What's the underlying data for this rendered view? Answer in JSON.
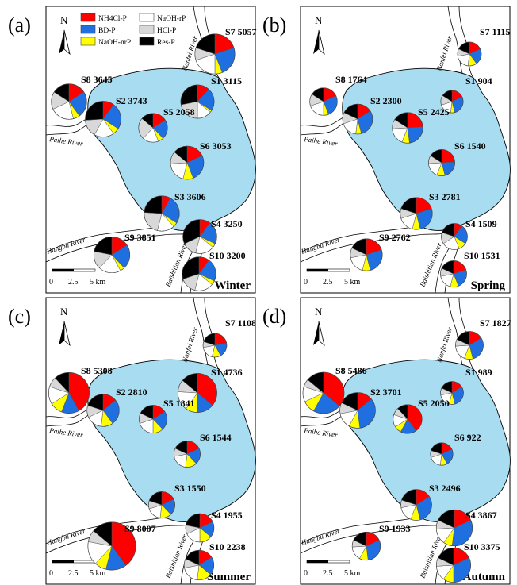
{
  "panel_labels": [
    "(a)",
    "(b)",
    "(c)",
    "(d)"
  ],
  "seasons": [
    "Winter",
    "Spring",
    "Summer",
    "Autumn"
  ],
  "north_label": "N",
  "rivers": {
    "nanfei": "Nanfei River",
    "paihe": "Paihe River",
    "hangbu": "Hangbu River",
    "baishitian": "Baishitian River"
  },
  "scale": {
    "t0": "0",
    "t1": "2.5",
    "t2": "5 km"
  },
  "legend": [
    {
      "name": "NH4Cl-P",
      "color": "#ff0000"
    },
    {
      "name": "NaOH-rP",
      "color": "#ffffff"
    },
    {
      "name": "BD-P",
      "color": "#1f6fe0"
    },
    {
      "name": "HCl-P",
      "color": "#d8d8d8"
    },
    {
      "name": "NaOH-nrP",
      "color": "#ffff00"
    },
    {
      "name": "Res-P",
      "color": "#000000"
    }
  ],
  "colors": {
    "lake": "#a8dcf0",
    "NH4Cl-P": "#ff0000",
    "BD-P": "#1f6fe0",
    "NaOH-nrP": "#ffff00",
    "NaOH-rP": "#ffffff",
    "HCl-P": "#d8d8d8",
    "Res-P": "#000000"
  },
  "site_labels": {
    "winter": {
      "S1": "S1  3115",
      "S2": "S2  3743",
      "S3": "S3  3606",
      "S4": "S4  3250",
      "S5": "S5  2058",
      "S6": "S6  3053",
      "S7": "S7  5057",
      "S8": "S8  3645",
      "S9": "S9  3851",
      "S10": "S10  3200"
    },
    "spring": {
      "S1": "S1  904",
      "S2": "S2  2300",
      "S3": "S3  2781",
      "S4": "S4  1509",
      "S5": "S5  2425",
      "S6": "S6  1540",
      "S7": "S7  1115",
      "S8": "S8  1764",
      "S9": "S9  2762",
      "S10": "S10  1531"
    },
    "summer": {
      "S1": "S1  4736",
      "S2": "S2  2810",
      "S3": "S3  1550",
      "S4": "S4  1955",
      "S5": "S5  1841",
      "S6": "S6  1544",
      "S7": "S7  1108",
      "S8": "S8  5308",
      "S9": "S9  8007",
      "S10": "S10  2238"
    },
    "autumn": {
      "S1": "S1  989",
      "S2": "S2  3701",
      "S3": "S3  2496",
      "S4": "S4  3867",
      "S5": "S5  2050",
      "S6": "S6  922",
      "S7": "S7  1827",
      "S8": "S8  5486",
      "S9": "S9  1933",
      "S10": "S10  3375"
    }
  },
  "totals": {
    "winter": {
      "S1": 3115,
      "S2": 3743,
      "S3": 3606,
      "S4": 3250,
      "S5": 2058,
      "S6": 3053,
      "S7": 5057,
      "S8": 3645,
      "S9": 3851,
      "S10": 3200
    },
    "spring": {
      "S1": 904,
      "S2": 2300,
      "S3": 2781,
      "S4": 1509,
      "S5": 2425,
      "S6": 1540,
      "S7": 1115,
      "S8": 1764,
      "S9": 2762,
      "S10": 1531
    },
    "summer": {
      "S1": 4736,
      "S2": 2810,
      "S3": 1550,
      "S4": 1955,
      "S5": 1841,
      "S6": 1544,
      "S7": 1108,
      "S8": 5308,
      "S9": 8007,
      "S10": 2238
    },
    "autumn": {
      "S1": 989,
      "S2": 3701,
      "S3": 2496,
      "S4": 3867,
      "S5": 2050,
      "S6": 922,
      "S7": 1827,
      "S8": 5486,
      "S9": 1933,
      "S10": 3375
    }
  },
  "fractions": {
    "order": [
      "NH4Cl-P",
      "BD-P",
      "NaOH-nrP",
      "NaOH-rP",
      "HCl-P",
      "Res-P"
    ],
    "winter": {
      "S1": [
        0.12,
        0.22,
        0.02,
        0.14,
        0.22,
        0.28
      ],
      "S2": [
        0.1,
        0.24,
        0.06,
        0.18,
        0.16,
        0.26
      ],
      "S3": [
        0.08,
        0.26,
        0.04,
        0.16,
        0.22,
        0.24
      ],
      "S4": [
        0.1,
        0.22,
        0.04,
        0.18,
        0.14,
        0.32
      ],
      "S5": [
        0.16,
        0.22,
        0.06,
        0.18,
        0.24,
        0.14
      ],
      "S6": [
        0.18,
        0.26,
        0.1,
        0.2,
        0.12,
        0.14
      ],
      "S7": [
        0.2,
        0.24,
        0.06,
        0.2,
        0.1,
        0.2
      ],
      "S8": [
        0.16,
        0.24,
        0.06,
        0.22,
        0.16,
        0.16
      ],
      "S9": [
        0.16,
        0.22,
        0.04,
        0.2,
        0.16,
        0.22
      ],
      "S10": [
        0.1,
        0.22,
        0.04,
        0.18,
        0.16,
        0.3
      ]
    },
    "spring": {
      "S1": [
        0.18,
        0.28,
        0.06,
        0.18,
        0.14,
        0.16
      ],
      "S2": [
        0.16,
        0.3,
        0.06,
        0.18,
        0.12,
        0.18
      ],
      "S3": [
        0.2,
        0.26,
        0.08,
        0.16,
        0.1,
        0.2
      ],
      "S4": [
        0.1,
        0.24,
        0.1,
        0.22,
        0.14,
        0.2
      ],
      "S5": [
        0.24,
        0.24,
        0.08,
        0.18,
        0.1,
        0.16
      ],
      "S6": [
        0.24,
        0.22,
        0.1,
        0.18,
        0.1,
        0.16
      ],
      "S7": [
        0.18,
        0.22,
        0.12,
        0.2,
        0.1,
        0.18
      ],
      "S8": [
        0.18,
        0.26,
        0.06,
        0.2,
        0.14,
        0.16
      ],
      "S9": [
        0.2,
        0.26,
        0.08,
        0.18,
        0.1,
        0.18
      ],
      "S10": [
        0.2,
        0.24,
        0.1,
        0.18,
        0.1,
        0.18
      ]
    },
    "summer": {
      "S1": [
        0.36,
        0.14,
        0.1,
        0.16,
        0.1,
        0.14
      ],
      "S2": [
        0.14,
        0.26,
        0.12,
        0.16,
        0.12,
        0.2
      ],
      "S3": [
        0.18,
        0.2,
        0.14,
        0.18,
        0.1,
        0.2
      ],
      "S4": [
        0.18,
        0.18,
        0.14,
        0.18,
        0.1,
        0.22
      ],
      "S5": [
        0.16,
        0.22,
        0.12,
        0.2,
        0.12,
        0.18
      ],
      "S6": [
        0.18,
        0.2,
        0.14,
        0.2,
        0.1,
        0.18
      ],
      "S7": [
        0.22,
        0.2,
        0.12,
        0.18,
        0.08,
        0.2
      ],
      "S8": [
        0.42,
        0.14,
        0.1,
        0.14,
        0.08,
        0.12
      ],
      "S9": [
        0.4,
        0.14,
        0.08,
        0.16,
        0.08,
        0.14
      ],
      "S10": [
        0.16,
        0.2,
        0.16,
        0.2,
        0.1,
        0.18
      ]
    },
    "autumn": {
      "S1": [
        0.16,
        0.3,
        0.08,
        0.18,
        0.1,
        0.18
      ],
      "S2": [
        0.14,
        0.34,
        0.1,
        0.14,
        0.1,
        0.18
      ],
      "S3": [
        0.16,
        0.3,
        0.1,
        0.16,
        0.08,
        0.2
      ],
      "S4": [
        0.18,
        0.34,
        0.08,
        0.14,
        0.08,
        0.18
      ],
      "S5": [
        0.4,
        0.18,
        0.08,
        0.14,
        0.08,
        0.12
      ],
      "S6": [
        0.18,
        0.24,
        0.1,
        0.18,
        0.1,
        0.2
      ],
      "S7": [
        0.16,
        0.3,
        0.1,
        0.18,
        0.08,
        0.18
      ],
      "S8": [
        0.36,
        0.22,
        0.1,
        0.12,
        0.06,
        0.14
      ],
      "S9": [
        0.18,
        0.3,
        0.1,
        0.16,
        0.08,
        0.18
      ],
      "S10": [
        0.18,
        0.32,
        0.1,
        0.14,
        0.08,
        0.18
      ]
    }
  }
}
